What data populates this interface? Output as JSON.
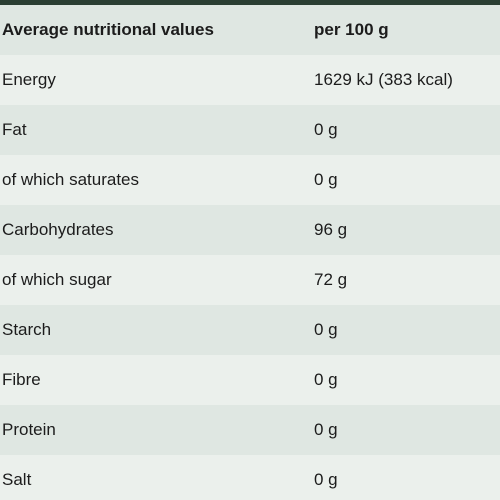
{
  "table": {
    "header": {
      "name": "Average nutritional values",
      "value": "per 100 g"
    },
    "rows": [
      {
        "name": "Energy",
        "value": "1629 kJ (383 kcal)"
      },
      {
        "name": "Fat",
        "value": "0 g"
      },
      {
        "name": "of which saturates",
        "value": "0 g"
      },
      {
        "name": "Carbohydrates",
        "value": "96 g"
      },
      {
        "name": "of which sugar",
        "value": "72 g"
      },
      {
        "name": "Starch",
        "value": "0 g"
      },
      {
        "name": "Fibre",
        "value": "0 g"
      },
      {
        "name": "Protein",
        "value": "0 g"
      },
      {
        "name": "Salt",
        "value": "0 g"
      }
    ]
  },
  "colors": {
    "top_bar": "#2b3f33",
    "row_dark": "#dfe7e2",
    "row_light": "#ebf0ec"
  }
}
